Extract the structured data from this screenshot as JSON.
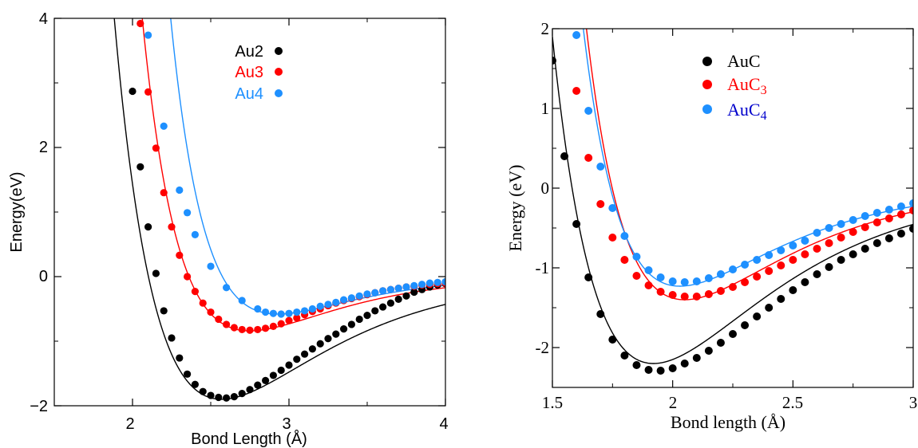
{
  "chart_data": [
    {
      "type": "scatter",
      "xlabel": "Bond Length (Å)",
      "ylabel": "Energy(eV)",
      "xlim": [
        1.5,
        4.0
      ],
      "ylim": [
        -2.0,
        4.0
      ],
      "xticks": [
        "2",
        "3",
        "4"
      ],
      "yticks": [
        "−2",
        "0",
        "2",
        "4"
      ],
      "legend_position": "top-center",
      "grid": false,
      "series": [
        {
          "name": "Au2",
          "color": "#000000",
          "fit": {
            "De": 1.9,
            "re": 2.57,
            "a": 1.48
          },
          "points": [
            [
              2.0,
              2.87
            ],
            [
              2.05,
              1.7
            ],
            [
              2.1,
              0.77
            ],
            [
              2.15,
              0.05
            ],
            [
              2.2,
              -0.53
            ],
            [
              2.25,
              -0.95
            ],
            [
              2.3,
              -1.26
            ],
            [
              2.35,
              -1.51
            ],
            [
              2.4,
              -1.67
            ],
            [
              2.45,
              -1.78
            ],
            [
              2.5,
              -1.84
            ],
            [
              2.55,
              -1.87
            ],
            [
              2.6,
              -1.88
            ],
            [
              2.65,
              -1.86
            ],
            [
              2.7,
              -1.81
            ],
            [
              2.75,
              -1.75
            ],
            [
              2.8,
              -1.68
            ],
            [
              2.85,
              -1.61
            ],
            [
              2.9,
              -1.53
            ],
            [
              2.95,
              -1.45
            ],
            [
              3.0,
              -1.37
            ],
            [
              3.05,
              -1.28
            ],
            [
              3.1,
              -1.2
            ],
            [
              3.15,
              -1.12
            ],
            [
              3.2,
              -1.04
            ],
            [
              3.25,
              -0.96
            ],
            [
              3.3,
              -0.89
            ],
            [
              3.35,
              -0.81
            ],
            [
              3.4,
              -0.74
            ],
            [
              3.45,
              -0.66
            ],
            [
              3.5,
              -0.6
            ],
            [
              3.55,
              -0.53
            ],
            [
              3.6,
              -0.47
            ],
            [
              3.65,
              -0.41
            ],
            [
              3.7,
              -0.35
            ],
            [
              3.75,
              -0.3
            ],
            [
              3.8,
              -0.24
            ],
            [
              3.85,
              -0.2
            ],
            [
              3.9,
              -0.16
            ],
            [
              3.95,
              -0.13
            ],
            [
              4.0,
              -0.11
            ]
          ]
        },
        {
          "name": "Au3",
          "color": "#ff0000",
          "fit": {
            "De": 0.84,
            "re": 2.75,
            "a": 1.78
          },
          "points": [
            [
              2.05,
              3.92
            ],
            [
              2.1,
              2.86
            ],
            [
              2.15,
              1.99
            ],
            [
              2.2,
              1.3
            ],
            [
              2.25,
              0.77
            ],
            [
              2.3,
              0.33
            ],
            [
              2.35,
              0.0
            ],
            [
              2.4,
              -0.23
            ],
            [
              2.45,
              -0.41
            ],
            [
              2.5,
              -0.55
            ],
            [
              2.55,
              -0.66
            ],
            [
              2.6,
              -0.74
            ],
            [
              2.65,
              -0.79
            ],
            [
              2.7,
              -0.82
            ],
            [
              2.75,
              -0.83
            ],
            [
              2.8,
              -0.82
            ],
            [
              2.85,
              -0.8
            ],
            [
              2.9,
              -0.77
            ],
            [
              2.95,
              -0.73
            ],
            [
              3.0,
              -0.68
            ],
            [
              3.05,
              -0.64
            ],
            [
              3.1,
              -0.59
            ],
            [
              3.15,
              -0.54
            ],
            [
              3.2,
              -0.5
            ],
            [
              3.25,
              -0.45
            ],
            [
              3.3,
              -0.41
            ],
            [
              3.35,
              -0.37
            ],
            [
              3.4,
              -0.34
            ],
            [
              3.45,
              -0.31
            ],
            [
              3.5,
              -0.28
            ],
            [
              3.55,
              -0.25
            ],
            [
              3.6,
              -0.22
            ],
            [
              3.65,
              -0.2
            ],
            [
              3.7,
              -0.18
            ],
            [
              3.75,
              -0.16
            ],
            [
              3.8,
              -0.15
            ],
            [
              3.85,
              -0.13
            ],
            [
              3.9,
              -0.12
            ],
            [
              3.95,
              -0.11
            ],
            [
              4.0,
              -0.1
            ]
          ]
        },
        {
          "name": "Au4",
          "color": "#1e90ff",
          "fit": {
            "De": 0.58,
            "re": 2.93,
            "a": 1.95
          },
          "points": [
            [
              2.1,
              3.74
            ],
            [
              2.2,
              2.33
            ],
            [
              2.3,
              1.34
            ],
            [
              2.35,
              0.99
            ],
            [
              2.4,
              0.65
            ],
            [
              2.5,
              0.16
            ],
            [
              2.6,
              -0.17
            ],
            [
              2.7,
              -0.37
            ],
            [
              2.8,
              -0.5
            ],
            [
              2.85,
              -0.55
            ],
            [
              2.9,
              -0.57
            ],
            [
              2.95,
              -0.58
            ],
            [
              3.0,
              -0.57
            ],
            [
              3.05,
              -0.55
            ],
            [
              3.1,
              -0.53
            ],
            [
              3.15,
              -0.5
            ],
            [
              3.2,
              -0.46
            ],
            [
              3.25,
              -0.43
            ],
            [
              3.3,
              -0.4
            ],
            [
              3.35,
              -0.36
            ],
            [
              3.4,
              -0.33
            ],
            [
              3.45,
              -0.3
            ],
            [
              3.5,
              -0.27
            ],
            [
              3.55,
              -0.25
            ],
            [
              3.6,
              -0.22
            ],
            [
              3.65,
              -0.2
            ],
            [
              3.7,
              -0.18
            ],
            [
              3.75,
              -0.16
            ],
            [
              3.8,
              -0.14
            ],
            [
              3.85,
              -0.12
            ],
            [
              3.9,
              -0.1
            ],
            [
              3.95,
              -0.09
            ],
            [
              4.0,
              -0.08
            ]
          ]
        }
      ]
    },
    {
      "type": "scatter",
      "xlabel": "Bond length (Å)",
      "ylabel": "Energy (eV)",
      "xlim": [
        1.5,
        3.0
      ],
      "ylim": [
        -2.5,
        2.0
      ],
      "xticks": [
        "1.5",
        "2",
        "2.5",
        "3"
      ],
      "yticks": [
        "-2",
        "-1",
        "0",
        "1",
        "2"
      ],
      "legend_position": "top-center",
      "grid": false,
      "series": [
        {
          "name": "AuC",
          "name_base": "AuC",
          "name_sub": "",
          "color": "#000000",
          "fit": {
            "De": 2.2,
            "re": 1.92,
            "a": 2.05
          },
          "points": [
            [
              1.5,
              1.6
            ],
            [
              1.55,
              0.4
            ],
            [
              1.6,
              -0.45
            ],
            [
              1.65,
              -1.12
            ],
            [
              1.7,
              -1.58
            ],
            [
              1.75,
              -1.9
            ],
            [
              1.8,
              -2.1
            ],
            [
              1.85,
              -2.22
            ],
            [
              1.9,
              -2.28
            ],
            [
              1.95,
              -2.29
            ],
            [
              2.0,
              -2.26
            ],
            [
              2.05,
              -2.2
            ],
            [
              2.1,
              -2.13
            ],
            [
              2.15,
              -2.04
            ],
            [
              2.2,
              -1.94
            ],
            [
              2.25,
              -1.83
            ],
            [
              2.3,
              -1.72
            ],
            [
              2.35,
              -1.61
            ],
            [
              2.4,
              -1.5
            ],
            [
              2.45,
              -1.39
            ],
            [
              2.5,
              -1.28
            ],
            [
              2.55,
              -1.18
            ],
            [
              2.6,
              -1.08
            ],
            [
              2.65,
              -0.99
            ],
            [
              2.7,
              -0.9
            ],
            [
              2.75,
              -0.83
            ],
            [
              2.8,
              -0.76
            ],
            [
              2.85,
              -0.69
            ],
            [
              2.9,
              -0.63
            ],
            [
              2.95,
              -0.57
            ],
            [
              3.0,
              -0.51
            ]
          ]
        },
        {
          "name": "AuC3",
          "name_base": "AuC",
          "name_sub": "3",
          "color": "#ff0000",
          "fit": {
            "De": 1.4,
            "re": 2.05,
            "a": 2.3
          },
          "points": [
            [
              1.6,
              1.22
            ],
            [
              1.65,
              0.38
            ],
            [
              1.7,
              -0.2
            ],
            [
              1.75,
              -0.62
            ],
            [
              1.8,
              -0.9
            ],
            [
              1.85,
              -1.1
            ],
            [
              1.9,
              -1.22
            ],
            [
              1.95,
              -1.3
            ],
            [
              2.0,
              -1.34
            ],
            [
              2.05,
              -1.36
            ],
            [
              2.1,
              -1.36
            ],
            [
              2.15,
              -1.33
            ],
            [
              2.2,
              -1.29
            ],
            [
              2.25,
              -1.24
            ],
            [
              2.3,
              -1.18
            ],
            [
              2.35,
              -1.11
            ],
            [
              2.4,
              -1.04
            ],
            [
              2.45,
              -0.97
            ],
            [
              2.5,
              -0.9
            ],
            [
              2.55,
              -0.83
            ],
            [
              2.6,
              -0.76
            ],
            [
              2.65,
              -0.69
            ],
            [
              2.7,
              -0.62
            ],
            [
              2.75,
              -0.55
            ],
            [
              2.8,
              -0.49
            ],
            [
              2.85,
              -0.43
            ],
            [
              2.9,
              -0.38
            ],
            [
              2.95,
              -0.33
            ],
            [
              3.0,
              -0.28
            ]
          ]
        },
        {
          "name": "AuC4",
          "name_base": "AuC",
          "name_sub": "4",
          "color": "#1e90ff",
          "fit": {
            "De": 1.23,
            "re": 2.03,
            "a": 2.4
          },
          "points": [
            [
              1.6,
              1.92
            ],
            [
              1.65,
              0.97
            ],
            [
              1.7,
              0.27
            ],
            [
              1.75,
              -0.25
            ],
            [
              1.8,
              -0.6
            ],
            [
              1.85,
              -0.86
            ],
            [
              1.9,
              -1.03
            ],
            [
              1.95,
              -1.12
            ],
            [
              2.0,
              -1.17
            ],
            [
              2.05,
              -1.18
            ],
            [
              2.1,
              -1.17
            ],
            [
              2.15,
              -1.13
            ],
            [
              2.2,
              -1.08
            ],
            [
              2.25,
              -1.02
            ],
            [
              2.3,
              -0.96
            ],
            [
              2.35,
              -0.9
            ],
            [
              2.4,
              -0.84
            ],
            [
              2.45,
              -0.78
            ],
            [
              2.5,
              -0.72
            ],
            [
              2.55,
              -0.66
            ],
            [
              2.6,
              -0.56
            ],
            [
              2.65,
              -0.5
            ],
            [
              2.7,
              -0.45
            ],
            [
              2.75,
              -0.4
            ],
            [
              2.8,
              -0.35
            ],
            [
              2.85,
              -0.31
            ],
            [
              2.9,
              -0.27
            ],
            [
              2.95,
              -0.23
            ],
            [
              3.0,
              -0.19
            ]
          ]
        }
      ]
    }
  ]
}
